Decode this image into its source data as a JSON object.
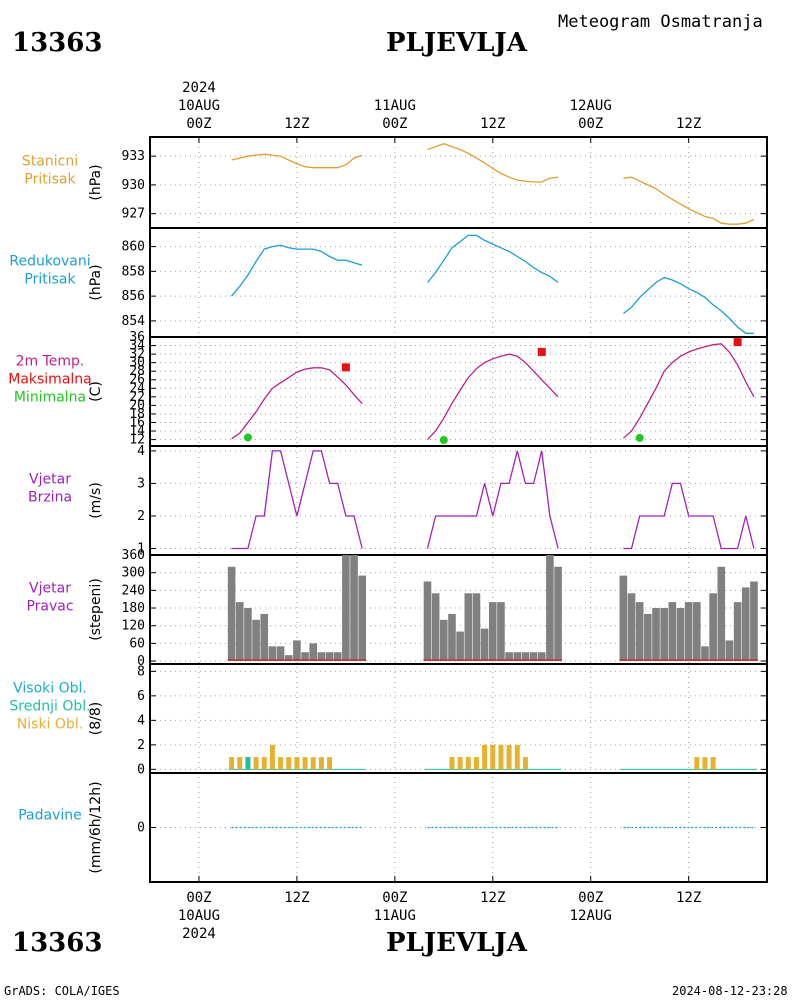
{
  "header": {
    "station_code": "13363",
    "station_name": "PLJEVLJA",
    "title": "Meteogram Osmatranja"
  },
  "footer": {
    "station_code": "13363",
    "station_name": "PLJEVLJA",
    "credit": "GrADS: COLA/IGES",
    "timestamp": "2024-08-12-23:28"
  },
  "time_axis": {
    "top_year": "2024",
    "bottom_year": "2024",
    "labels": [
      {
        "t": 0,
        "hour": "00Z",
        "date": "10AUG"
      },
      {
        "t": 12,
        "hour": "12Z",
        "date": ""
      },
      {
        "t": 24,
        "hour": "00Z",
        "date": "11AUG"
      },
      {
        "t": 36,
        "hour": "12Z",
        "date": ""
      },
      {
        "t": 48,
        "hour": "00Z",
        "date": "12AUG"
      },
      {
        "t": 60,
        "hour": "12Z",
        "date": ""
      }
    ]
  },
  "colors": {
    "pressure": "#e0a030",
    "reduced_pressure": "#1aa0d8",
    "temp_line": "#c0208a",
    "max_temp": "#e81010",
    "min_temp": "#20c820",
    "wind": "#a020c0",
    "bars": "#808080",
    "high_clouds": "#18b0c8",
    "mid_clouds": "#20c0a0",
    "low_clouds": "#e8b030",
    "precip": "#1aa0d8",
    "grid": "#a0a0a0"
  },
  "chart_data": [
    {
      "id": "station_pressure",
      "type": "line",
      "labels": [
        "Stanicni",
        "Pritisak"
      ],
      "ylabel": "(hPa)",
      "yticks": [
        927,
        930,
        933
      ],
      "ylim": [
        925.5,
        935
      ],
      "series": [
        {
          "segments": [
            {
              "x": [
                4,
                6,
                8,
                10,
                11,
                12,
                13,
                14,
                15,
                16,
                17,
                18,
                19,
                20
              ],
              "y": [
                932.6,
                933.0,
                933.2,
                933.0,
                932.6,
                932.2,
                931.9,
                931.8,
                931.8,
                931.8,
                931.8,
                932.1,
                932.8,
                933.1
              ]
            },
            {
              "x": [
                28,
                29,
                30,
                31,
                32,
                33,
                34,
                35,
                36,
                37,
                38,
                39,
                40,
                41,
                42,
                43,
                44
              ],
              "y": [
                933.7,
                934.0,
                934.3,
                934.0,
                933.7,
                933.3,
                932.8,
                932.3,
                931.7,
                931.2,
                930.8,
                930.5,
                930.4,
                930.3,
                930.3,
                930.7,
                930.8
              ]
            },
            {
              "x": [
                52,
                53,
                54,
                55,
                56,
                57,
                58,
                59,
                60,
                61,
                62,
                63,
                64,
                65,
                66,
                67,
                68
              ],
              "y": [
                930.7,
                930.8,
                930.4,
                930.0,
                929.6,
                929.0,
                928.5,
                928.0,
                927.5,
                927.1,
                926.7,
                926.5,
                926.0,
                925.9,
                925.9,
                926.0,
                926.4
              ]
            }
          ]
        }
      ]
    },
    {
      "id": "reduced_pressure",
      "type": "line",
      "labels": [
        "Redukovani",
        "Pritisak"
      ],
      "ylabel": "(hPa)",
      "yticks": [
        854,
        856,
        858,
        860
      ],
      "ylim": [
        852.7,
        861.5
      ],
      "series": [
        {
          "segments": [
            {
              "x": [
                4,
                5,
                6,
                7,
                8,
                9,
                10,
                11,
                12,
                13,
                14,
                15,
                16,
                17,
                18,
                19,
                20
              ],
              "y": [
                856.0,
                856.8,
                857.7,
                858.8,
                859.8,
                860.0,
                860.1,
                859.9,
                859.8,
                859.8,
                859.8,
                859.6,
                859.2,
                858.9,
                858.9,
                858.7,
                858.5
              ]
            },
            {
              "x": [
                28,
                29,
                30,
                31,
                32,
                33,
                34,
                35,
                36,
                37,
                38,
                39,
                40,
                41,
                42,
                43,
                44
              ],
              "y": [
                857.1,
                857.9,
                858.9,
                859.9,
                860.4,
                860.9,
                860.9,
                860.5,
                860.2,
                859.9,
                859.6,
                859.2,
                858.8,
                858.3,
                857.9,
                857.6,
                857.1
              ]
            },
            {
              "x": [
                52,
                53,
                54,
                55,
                56,
                57,
                58,
                59,
                60,
                61,
                62,
                63,
                64,
                65,
                66,
                67,
                68
              ],
              "y": [
                854.6,
                855.1,
                855.9,
                856.5,
                857.1,
                857.5,
                857.3,
                857.0,
                856.6,
                856.3,
                855.9,
                855.3,
                854.8,
                854.2,
                853.5,
                853.0,
                853.0
              ]
            }
          ]
        }
      ]
    },
    {
      "id": "temperature_2m",
      "type": "line",
      "labels": [
        "2m Temp.",
        "Maksimalna",
        "Minimalna"
      ],
      "ylabel": "(C)",
      "yticks": [
        12,
        14,
        16,
        18,
        20,
        22,
        24,
        26,
        28,
        30,
        32,
        34,
        36
      ],
      "ylim": [
        10.5,
        36
      ],
      "series": [
        {
          "name": "2m Temp.",
          "segments": [
            {
              "x": [
                4,
                5,
                6,
                7,
                8,
                9,
                10,
                11,
                12,
                13,
                14,
                15,
                16,
                17,
                18,
                19,
                20
              ],
              "y": [
                12.2,
                13.5,
                16.0,
                18.5,
                21.5,
                24.0,
                25.3,
                26.5,
                27.8,
                28.5,
                28.8,
                28.8,
                28.3,
                26.6,
                24.8,
                22.5,
                20.4
              ]
            },
            {
              "x": [
                28,
                29,
                30,
                31,
                32,
                33,
                34,
                35,
                36,
                37,
                38,
                39,
                40,
                41,
                42,
                43,
                44
              ],
              "y": [
                12.0,
                14.0,
                17.0,
                20.5,
                23.5,
                26.5,
                28.6,
                30.0,
                30.9,
                31.5,
                32.0,
                31.5,
                30.0,
                28.0,
                26.0,
                24.0,
                22.0
              ]
            },
            {
              "x": [
                52,
                53,
                54,
                55,
                56,
                57,
                58,
                59,
                60,
                61,
                62,
                63,
                64,
                65,
                66,
                67,
                68
              ],
              "y": [
                12.3,
                14.0,
                17.0,
                20.5,
                24.0,
                28.0,
                30.0,
                31.5,
                32.5,
                33.2,
                33.7,
                34.2,
                34.4,
                32.4,
                29.5,
                25.5,
                22.0
              ]
            }
          ]
        },
        {
          "name": "Maksimalna",
          "points": [
            {
              "x": 18,
              "y": 28.9
            },
            {
              "x": 42,
              "y": 32.5
            },
            {
              "x": 66,
              "y": 34.8
            }
          ]
        },
        {
          "name": "Minimalna",
          "points": [
            {
              "x": 6,
              "y": 12.5
            },
            {
              "x": 30,
              "y": 11.9
            },
            {
              "x": 54,
              "y": 12.4
            }
          ]
        }
      ]
    },
    {
      "id": "wind_speed",
      "type": "line",
      "labels": [
        "Vjetar",
        "Brzina"
      ],
      "ylabel": "(m/s)",
      "yticks": [
        1,
        2,
        3,
        4
      ],
      "ylim": [
        0.8,
        4.15
      ],
      "series": [
        {
          "segments": [
            {
              "x": [
                4,
                5,
                6,
                7,
                8,
                9,
                10,
                11,
                12,
                13,
                14,
                15,
                16,
                17,
                18,
                19,
                20
              ],
              "y": [
                1,
                1,
                1,
                2,
                2,
                4,
                4,
                3,
                2,
                3,
                4,
                4,
                3,
                3,
                2,
                2,
                1
              ]
            },
            {
              "x": [
                28,
                29,
                30,
                31,
                32,
                33,
                34,
                35,
                36,
                37,
                38,
                39,
                40,
                41,
                42,
                43,
                44
              ],
              "y": [
                1,
                2,
                2,
                2,
                2,
                2,
                2,
                3,
                2,
                3,
                3,
                4,
                3,
                3,
                4,
                2,
                1
              ]
            },
            {
              "x": [
                52,
                53,
                54,
                55,
                56,
                57,
                58,
                59,
                60,
                61,
                62,
                63,
                64,
                65,
                66,
                67,
                68
              ],
              "y": [
                1,
                1,
                2,
                2,
                2,
                2,
                3,
                3,
                2,
                2,
                2,
                2,
                1,
                1,
                1,
                2,
                1
              ]
            }
          ]
        }
      ]
    },
    {
      "id": "wind_direction",
      "type": "bar",
      "labels": [
        "Vjetar",
        "Pravac"
      ],
      "ylabel": "(stepeni)",
      "yticks": [
        0,
        60,
        120,
        180,
        240,
        300,
        360
      ],
      "ylim": [
        -10,
        360
      ],
      "x": [
        4,
        5,
        6,
        7,
        8,
        9,
        10,
        11,
        12,
        13,
        14,
        15,
        16,
        17,
        18,
        19,
        20,
        28,
        29,
        30,
        31,
        32,
        33,
        34,
        35,
        36,
        37,
        38,
        39,
        40,
        41,
        42,
        43,
        44,
        52,
        53,
        54,
        55,
        56,
        57,
        58,
        59,
        60,
        61,
        62,
        63,
        64,
        65,
        66,
        67,
        68
      ],
      "values": [
        320,
        200,
        180,
        140,
        160,
        50,
        50,
        20,
        70,
        30,
        60,
        30,
        30,
        30,
        360,
        360,
        290,
        270,
        230,
        140,
        160,
        100,
        230,
        230,
        110,
        200,
        200,
        30,
        30,
        30,
        30,
        30,
        360,
        320,
        290,
        230,
        200,
        160,
        180,
        180,
        200,
        180,
        200,
        200,
        50,
        230,
        320,
        70,
        200,
        250,
        270
      ]
    },
    {
      "id": "clouds",
      "type": "bar",
      "labels": [
        "Visoki Obl.",
        "Srednji Obl.",
        "Niski Obl."
      ],
      "ylabel": "(8/8)",
      "yticks": [
        0,
        2,
        4,
        6,
        8
      ],
      "ylim": [
        -0.3,
        8.6
      ],
      "x": [
        4,
        5,
        6,
        7,
        8,
        9,
        10,
        11,
        12,
        13,
        14,
        15,
        16,
        17,
        18,
        19,
        20,
        28,
        29,
        30,
        31,
        32,
        33,
        34,
        35,
        36,
        37,
        38,
        39,
        40,
        41,
        42,
        43,
        44,
        52,
        53,
        54,
        55,
        56,
        57,
        58,
        59,
        60,
        61,
        62,
        63,
        64,
        65,
        66,
        67,
        68
      ],
      "series": [
        {
          "name": "Niski Obl.",
          "values": [
            1,
            1,
            1,
            1,
            1,
            2,
            1,
            1,
            1,
            1,
            1,
            1,
            1,
            0,
            0,
            0,
            0,
            0,
            0,
            0,
            1,
            1,
            1,
            1,
            2,
            2,
            2,
            2,
            2,
            1,
            0,
            0,
            0,
            0,
            0,
            0,
            0,
            0,
            0,
            0,
            0,
            0,
            0,
            1,
            1,
            1,
            0,
            0,
            0,
            0,
            0
          ]
        },
        {
          "name": "Srednji Obl.",
          "values": [
            0,
            0,
            1,
            0,
            0,
            0,
            0,
            0,
            0,
            0,
            0,
            0,
            0,
            0,
            0,
            0,
            0,
            0,
            0,
            0,
            0,
            0,
            0,
            0,
            0,
            0,
            0,
            0,
            0,
            0,
            0,
            0,
            0,
            0,
            0,
            0,
            0,
            0,
            0,
            0,
            0,
            0,
            0,
            0,
            0,
            0,
            0,
            0,
            0,
            0,
            0
          ]
        },
        {
          "name": "Visoki Obl.",
          "values": [
            0,
            0,
            0,
            0,
            0,
            0,
            0,
            0,
            0,
            0,
            0,
            0,
            0,
            0,
            0,
            0,
            0,
            0,
            0,
            0,
            0,
            0,
            0,
            0,
            0,
            0,
            0,
            0,
            0,
            0,
            0,
            0,
            0,
            0,
            0,
            0,
            0,
            0,
            0,
            0,
            0,
            0,
            0,
            0,
            0,
            0,
            0,
            0,
            0,
            0,
            0
          ]
        }
      ]
    },
    {
      "id": "precipitation",
      "type": "bar",
      "labels": [
        "Padavine"
      ],
      "ylabel": "(mm/6h/12h)",
      "yticks": [
        0
      ],
      "ylim": [
        -1,
        1
      ],
      "x": [
        4,
        20,
        28,
        44,
        52,
        68
      ],
      "values": [
        0,
        0,
        0,
        0,
        0,
        0
      ]
    }
  ]
}
